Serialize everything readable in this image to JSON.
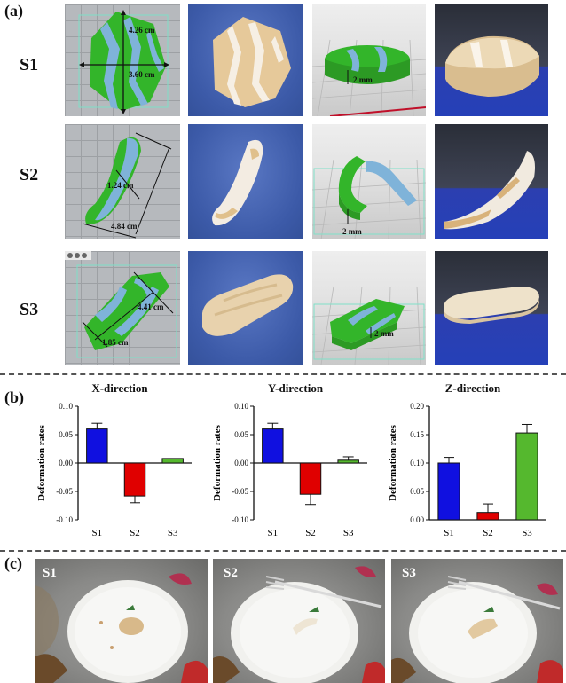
{
  "panels": {
    "a": "(a)",
    "b": "(b)",
    "c": "(c)"
  },
  "rows": [
    "S1",
    "S2",
    "S3"
  ],
  "measurements": {
    "s1_height": "4.26 cm",
    "s1_width": "3.60 cm",
    "s1_thickness": "2 mm",
    "s2_width": "1.24 cm",
    "s2_length": "4.84 cm",
    "s2_thickness": "2 mm",
    "s3_length": "4.41 cm",
    "s3_width": "1.85 cm",
    "s3_thickness": "2 mm"
  },
  "photo_labels": [
    "S1",
    "S2",
    "S3"
  ],
  "colors": {
    "S1": "#1010e0",
    "S2": "#e00000",
    "S3": "#55b82e",
    "print_green": "#33b52a",
    "print_blue": "#7fb3d9"
  },
  "chart_data": [
    {
      "type": "bar",
      "title": "X-direction",
      "ylabel": "Deformation rates",
      "categories": [
        "S1",
        "S2",
        "S3"
      ],
      "values": [
        0.06,
        -0.058,
        0.008
      ],
      "errors": [
        0.01,
        0.012,
        0.0
      ],
      "ylim": [
        -0.1,
        0.1
      ],
      "yticks": [
        "0.10",
        "0.05",
        "0.00",
        "-0.05",
        "-0.10"
      ],
      "ytick_values": [
        0.1,
        0.05,
        0.0,
        -0.05,
        -0.1
      ]
    },
    {
      "type": "bar",
      "title": "Y-direction",
      "ylabel": "Deformation rates",
      "categories": [
        "S1",
        "S2",
        "S3"
      ],
      "values": [
        0.06,
        -0.055,
        0.005
      ],
      "errors": [
        0.01,
        0.018,
        0.006
      ],
      "ylim": [
        -0.1,
        0.1
      ],
      "yticks": [
        "0.10",
        "0.05",
        "0.00",
        "-0.05",
        "-0.10"
      ],
      "ytick_values": [
        0.1,
        0.05,
        0.0,
        -0.05,
        -0.1
      ]
    },
    {
      "type": "bar",
      "title": "Z-direction",
      "ylabel": "Deformation rates",
      "categories": [
        "S1",
        "S2",
        "S3"
      ],
      "values": [
        0.1,
        0.013,
        0.153
      ],
      "errors": [
        0.01,
        0.015,
        0.015
      ],
      "ylim": [
        0.0,
        0.2
      ],
      "yticks": [
        "0.20",
        "0.15",
        "0.10",
        "0.05",
        "0.00"
      ],
      "ytick_values": [
        0.2,
        0.15,
        0.1,
        0.05,
        0.0
      ]
    }
  ]
}
